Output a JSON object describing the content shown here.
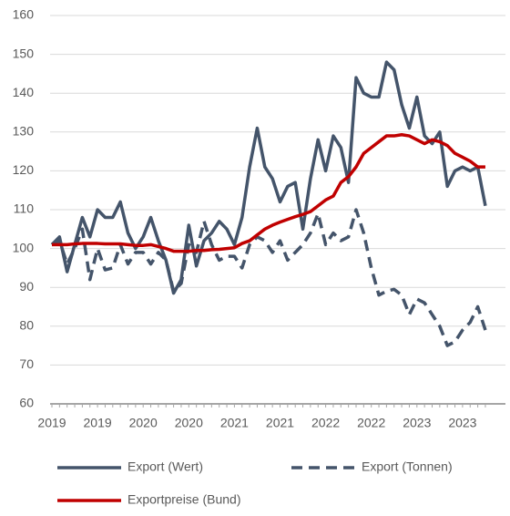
{
  "chart_data": {
    "type": "line",
    "categories": [
      "2019",
      null,
      null,
      null,
      null,
      null,
      "2019",
      null,
      null,
      null,
      null,
      null,
      "2020",
      null,
      null,
      null,
      null,
      null,
      "2020",
      null,
      null,
      null,
      null,
      null,
      "2021",
      null,
      null,
      null,
      null,
      null,
      "2021",
      null,
      null,
      null,
      null,
      null,
      "2022",
      null,
      null,
      null,
      null,
      null,
      "2022",
      null,
      null,
      null,
      null,
      null,
      "2023",
      null,
      null,
      null,
      null,
      null,
      "2023",
      null,
      null,
      null
    ],
    "series": [
      {
        "name": "Export (Wert)",
        "color": "#44546a",
        "style": "solid",
        "values": [
          101,
          103,
          94,
          101,
          108,
          103,
          110,
          108,
          108,
          112,
          104,
          100,
          103,
          108,
          102,
          97,
          88.5,
          92,
          106,
          95.5,
          102,
          104,
          107,
          105,
          101,
          108,
          121,
          131,
          121,
          118,
          112,
          116,
          117,
          105,
          118,
          128,
          120,
          129,
          126,
          117,
          144,
          140,
          139,
          139,
          148,
          146,
          137,
          131,
          139,
          129,
          127,
          130,
          116,
          120,
          121,
          120,
          121,
          111
        ]
      },
      {
        "name": "Export (Tonnen)",
        "color": "#44546a",
        "style": "dashed",
        "values": [
          101,
          102,
          96,
          100,
          105,
          92,
          100,
          94.5,
          95,
          101,
          96,
          99,
          99,
          96,
          99,
          97,
          89,
          91,
          101,
          99,
          107,
          101,
          97,
          98,
          98,
          95,
          101,
          103,
          102,
          99,
          102,
          97,
          99,
          101,
          104,
          109,
          101,
          104,
          102,
          103,
          110,
          104,
          95,
          88,
          89,
          89.5,
          88,
          83,
          87,
          86,
          83,
          80,
          75,
          76,
          79,
          81,
          85,
          79
        ]
      },
      {
        "name": "Exportpreise (Bund)",
        "color": "#c00000",
        "style": "solid",
        "values": [
          101,
          101,
          101,
          101.2,
          101.3,
          101.3,
          101.3,
          101.2,
          101.2,
          101.2,
          101,
          100.8,
          100.8,
          101,
          100.5,
          100,
          99.3,
          99.3,
          99.3,
          99.5,
          99.5,
          99.7,
          99.8,
          100,
          100.2,
          101.3,
          102,
          103.5,
          105,
          106,
          106.8,
          107.5,
          108.2,
          108.8,
          109.5,
          111,
          112.5,
          113.5,
          117,
          118.5,
          121,
          124.5,
          126,
          127.5,
          129,
          129,
          129.3,
          129,
          128,
          127,
          128,
          127.5,
          126.5,
          124.5,
          123.5,
          122.5,
          121,
          121
        ]
      }
    ],
    "ylim": [
      60,
      160
    ],
    "yticks": [
      60,
      70,
      80,
      90,
      100,
      110,
      120,
      130,
      140,
      150,
      160
    ],
    "grid": true
  }
}
